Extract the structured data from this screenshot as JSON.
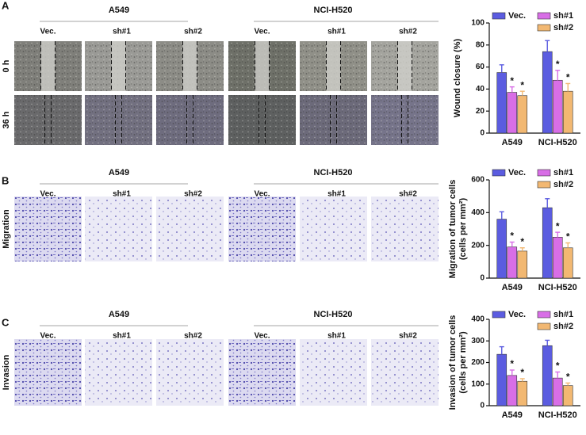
{
  "figure": {
    "panel_labels": [
      "A",
      "B",
      "C"
    ],
    "cell_lines": [
      "A549",
      "NCI-H520"
    ],
    "groups": [
      "Vec.",
      "sh#1",
      "sh#2"
    ],
    "time_points": [
      "0 h",
      "36 h"
    ],
    "assays": [
      "Migration",
      "Invasion"
    ]
  },
  "chart_data": [
    {
      "type": "bar",
      "y_label": "Wound closure (%)",
      "categories": [
        "A549",
        "NCI-H520"
      ],
      "ylim": [
        0,
        100
      ],
      "yticks": [
        0,
        20,
        40,
        60,
        80,
        100
      ],
      "series": [
        {
          "name": "Vec.",
          "color": "#5b5ce0",
          "values": [
            55,
            74
          ],
          "errors": [
            7,
            10
          ]
        },
        {
          "name": "sh#1",
          "color": "#d86ee6",
          "values": [
            37,
            48
          ],
          "errors": [
            5,
            9
          ],
          "annotation": "*"
        },
        {
          "name": "sh#2",
          "color": "#f2b872",
          "values": [
            34,
            38
          ],
          "errors": [
            4,
            7
          ],
          "annotation": "*"
        }
      ]
    },
    {
      "type": "bar",
      "y_label": [
        "Migration of tumor cells",
        "(cells per mm²)"
      ],
      "categories": [
        "A549",
        "NCI-H520"
      ],
      "ylim": [
        0,
        600
      ],
      "yticks": [
        0,
        200,
        400,
        600
      ],
      "series": [
        {
          "name": "Vec.",
          "color": "#5b5ce0",
          "values": [
            360,
            430
          ],
          "errors": [
            45,
            55
          ]
        },
        {
          "name": "sh#1",
          "color": "#d86ee6",
          "values": [
            190,
            250
          ],
          "errors": [
            30,
            30
          ],
          "annotation": "*"
        },
        {
          "name": "sh#2",
          "color": "#f2b872",
          "values": [
            165,
            185
          ],
          "errors": [
            20,
            30
          ],
          "annotation": "*"
        }
      ]
    },
    {
      "type": "bar",
      "y_label": [
        "Invasion of tumor cells",
        "(cells per mm²)"
      ],
      "categories": [
        "A549",
        "NCI-H520"
      ],
      "ylim": [
        0,
        400
      ],
      "yticks": [
        0,
        100,
        200,
        300,
        400
      ],
      "series": [
        {
          "name": "Vec.",
          "color": "#5b5ce0",
          "values": [
            238,
            278
          ],
          "errors": [
            35,
            25
          ]
        },
        {
          "name": "sh#1",
          "color": "#d86ee6",
          "values": [
            140,
            128
          ],
          "errors": [
            25,
            28
          ],
          "annotation": "*"
        },
        {
          "name": "sh#2",
          "color": "#f2b872",
          "values": [
            113,
            93
          ],
          "errors": [
            12,
            12
          ],
          "annotation": "*"
        }
      ]
    }
  ]
}
